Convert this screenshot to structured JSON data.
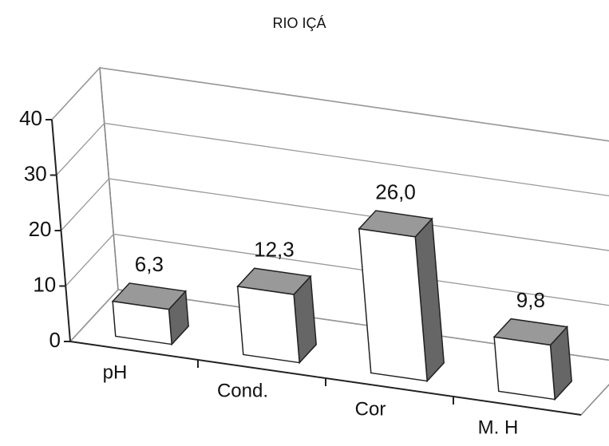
{
  "chart_data": {
    "type": "bar3d",
    "title": "RIO IÇÁ",
    "categories": [
      "pH",
      "Cond.",
      "Cor",
      "M. H"
    ],
    "values": [
      6.3,
      12.3,
      26.0,
      9.8
    ],
    "value_labels": [
      "6,3",
      "12,3",
      "26,0",
      "9,8"
    ],
    "ylim": [
      0,
      40
    ],
    "yticks": [
      0,
      10,
      20,
      30,
      40
    ],
    "grid": true,
    "colors": {
      "front": "#ffffff",
      "top": "#999999",
      "side": "#666666"
    }
  }
}
